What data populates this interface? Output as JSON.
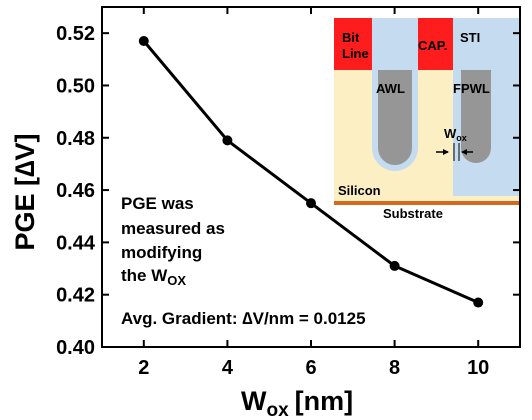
{
  "chart_data": {
    "type": "line",
    "x": [
      2,
      4,
      6,
      8,
      10
    ],
    "series": [
      {
        "values": [
          0.517,
          0.479,
          0.455,
          0.431,
          0.417
        ]
      }
    ],
    "xlabel": "W",
    "xlabel_sub": "ox",
    "xlabel_unit": "[nm]",
    "ylabel": "PGE [∆V]",
    "xlim": [
      1,
      11
    ],
    "ylim": [
      0.4,
      0.53
    ],
    "xticks": [
      "2",
      "4",
      "6",
      "8",
      "10"
    ],
    "yticks": [
      "0.40",
      "0.42",
      "0.44",
      "0.46",
      "0.48",
      "0.50",
      "0.52"
    ],
    "grid": false,
    "annotations": {
      "note_lines": [
        "PGE was",
        "measured as",
        "modifying",
        "the W"
      ],
      "note_sub": "OX",
      "gradient": "Avg. Gradient: ∆V/nm = 0.0125"
    },
    "inset": {
      "bit_line_top": "Bit",
      "bit_line_bottom": "Line",
      "cap": "CAP.",
      "sti": "STI",
      "awl": "AWL",
      "fpwl": "FPWL",
      "wox": "W",
      "wox_sub": "ox",
      "silicon": "Silicon",
      "substrate": "Substrate",
      "colors": {
        "silicon": "#fcefc4",
        "liner": "#c5dcf0",
        "gate": "#969696",
        "red": "#ff1c1c",
        "substrate_line": "#d2691e"
      }
    }
  }
}
